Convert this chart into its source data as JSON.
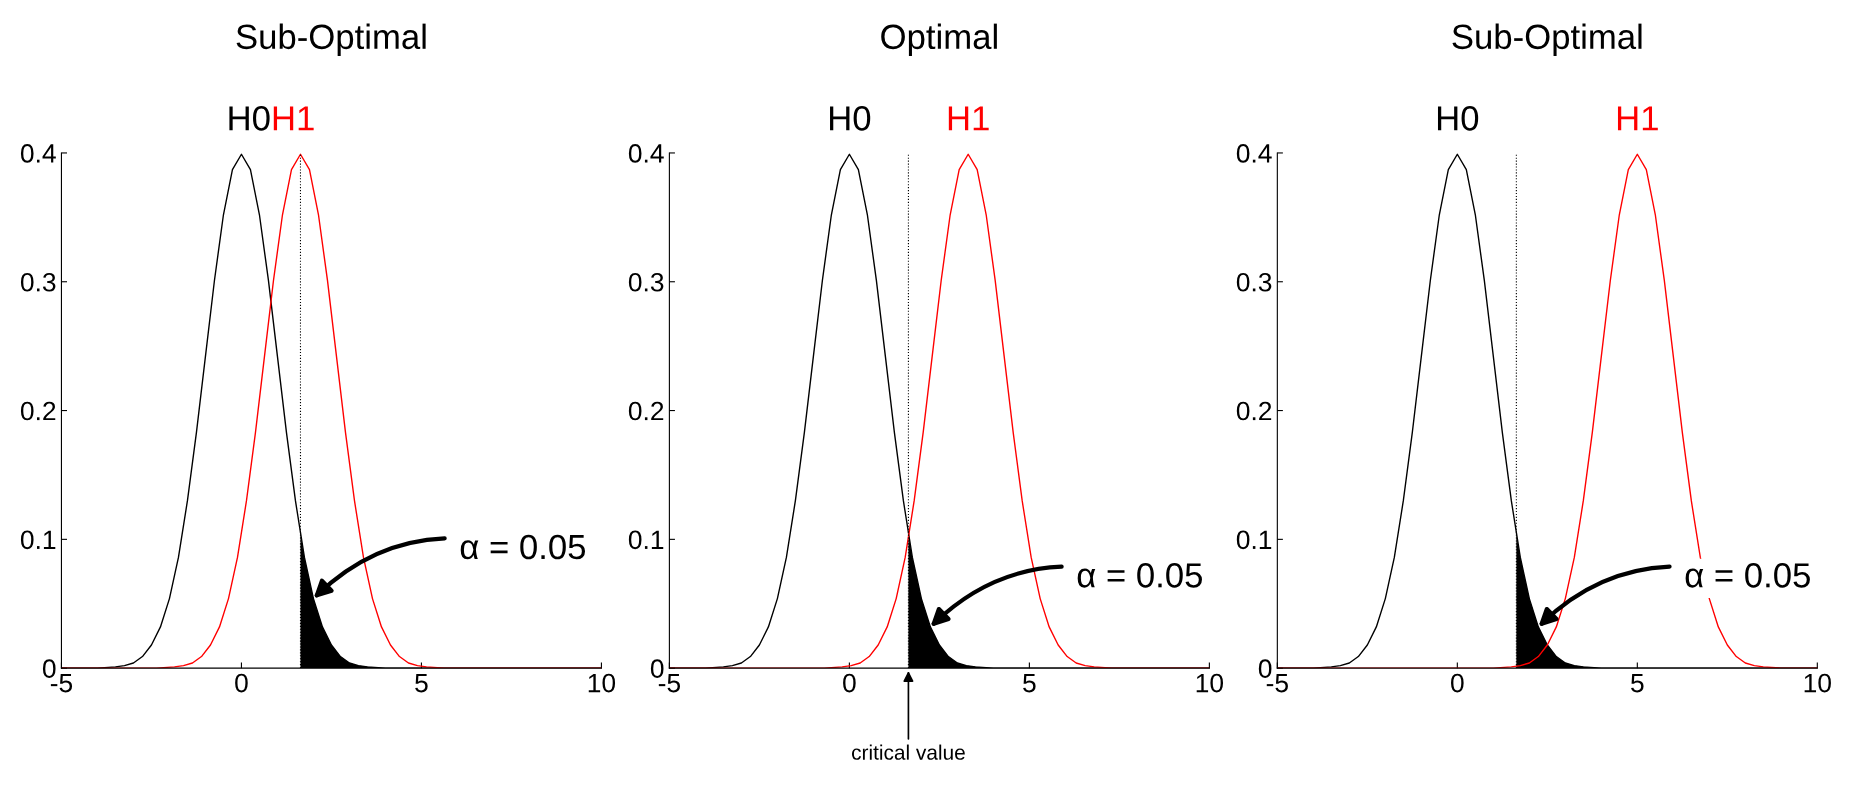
{
  "chart_data": [
    {
      "type": "line",
      "title": "Sub-Optimal",
      "xlim": [
        -5,
        10
      ],
      "ylim": [
        0,
        0.4
      ],
      "xticks": [
        -5,
        0,
        5,
        10
      ],
      "yticks": [
        0,
        0.1,
        0.2,
        0.3,
        0.4
      ],
      "grid": false,
      "legend": false,
      "marker": "none",
      "line_style": "solid",
      "series": [
        {
          "name": "H0",
          "color": "#000000",
          "x": [
            -5,
            -4,
            -3.5,
            -3.25,
            -3,
            -2.75,
            -2.5,
            -2.25,
            -2,
            -1.75,
            -1.5,
            -1.25,
            -1,
            -0.75,
            -0.5,
            -0.25,
            0,
            0.25,
            0.5,
            0.75,
            1,
            1.25,
            1.5,
            1.75,
            2,
            2.25,
            2.5,
            2.75,
            3,
            3.25,
            3.5,
            4,
            10
          ],
          "values": [
            0,
            0,
            0.001,
            0.002,
            0.004,
            0.009,
            0.018,
            0.032,
            0.054,
            0.086,
            0.13,
            0.183,
            0.242,
            0.301,
            0.352,
            0.387,
            0.399,
            0.387,
            0.352,
            0.301,
            0.242,
            0.183,
            0.13,
            0.086,
            0.054,
            0.032,
            0.018,
            0.009,
            0.004,
            0.002,
            0.001,
            0,
            0
          ]
        },
        {
          "name": "H1",
          "color": "#ff0000",
          "x": [
            -5,
            -2.36,
            -1.86,
            -1.61,
            -1.36,
            -1.11,
            -0.86,
            -0.61,
            -0.36,
            -0.11,
            0.14,
            0.39,
            0.64,
            0.89,
            1.14,
            1.39,
            1.64,
            1.89,
            2.14,
            2.39,
            2.64,
            2.89,
            3.14,
            3.39,
            3.64,
            3.89,
            4.14,
            4.39,
            4.64,
            4.89,
            5.14,
            5.64,
            10
          ],
          "values": [
            0,
            0,
            0.001,
            0.002,
            0.004,
            0.009,
            0.018,
            0.032,
            0.054,
            0.086,
            0.13,
            0.183,
            0.242,
            0.301,
            0.352,
            0.387,
            0.399,
            0.387,
            0.352,
            0.301,
            0.242,
            0.183,
            0.13,
            0.086,
            0.054,
            0.032,
            0.018,
            0.009,
            0.004,
            0.002,
            0.001,
            0,
            0
          ]
        },
        {
          "type": "area",
          "color": "#000000",
          "x": [
            1.64,
            1.75,
            2,
            2.25,
            2.5,
            2.75,
            3,
            3.25,
            3.5,
            4,
            10
          ],
          "values": [
            0.104,
            0.086,
            0.054,
            0.032,
            0.018,
            0.009,
            0.004,
            0.002,
            0.001,
            0,
            0
          ]
        }
      ],
      "ref_lines": [
        {
          "axis": "x",
          "value": 1.64,
          "color": "#000000",
          "line_style": "dotted"
        }
      ],
      "annotations": [
        {
          "text": "α = 0.05",
          "x": 2,
          "y": 0.054
        }
      ]
    },
    {
      "type": "line",
      "title": "Optimal",
      "xlim": [
        -5,
        10
      ],
      "ylim": [
        0,
        0.4
      ],
      "xticks": [
        -5,
        0,
        5,
        10
      ],
      "yticks": [
        0,
        0.1,
        0.2,
        0.3,
        0.4
      ],
      "grid": false,
      "legend": false,
      "marker": "none",
      "line_style": "solid",
      "series": [
        {
          "name": "H0",
          "color": "#000000",
          "x": [
            -5,
            -4,
            -3.5,
            -3.25,
            -3,
            -2.75,
            -2.5,
            -2.25,
            -2,
            -1.75,
            -1.5,
            -1.25,
            -1,
            -0.75,
            -0.5,
            -0.25,
            0,
            0.25,
            0.5,
            0.75,
            1,
            1.25,
            1.5,
            1.75,
            2,
            2.25,
            2.5,
            2.75,
            3,
            3.25,
            3.5,
            4,
            10
          ],
          "values": [
            0,
            0,
            0.001,
            0.002,
            0.004,
            0.009,
            0.018,
            0.032,
            0.054,
            0.086,
            0.13,
            0.183,
            0.242,
            0.301,
            0.352,
            0.387,
            0.399,
            0.387,
            0.352,
            0.301,
            0.242,
            0.183,
            0.13,
            0.086,
            0.054,
            0.032,
            0.018,
            0.009,
            0.004,
            0.002,
            0.001,
            0,
            0
          ]
        },
        {
          "name": "H1",
          "color": "#ff0000",
          "x": [
            -5,
            -0.7,
            -0.2,
            0.05,
            0.3,
            0.55,
            0.8,
            1.05,
            1.3,
            1.55,
            1.8,
            2.05,
            2.3,
            2.55,
            2.8,
            3.05,
            3.3,
            3.55,
            3.8,
            4.05,
            4.3,
            4.55,
            4.8,
            5.05,
            5.3,
            5.55,
            5.8,
            6.05,
            6.3,
            6.55,
            6.8,
            7.3,
            10
          ],
          "values": [
            0,
            0,
            0.001,
            0.002,
            0.004,
            0.009,
            0.018,
            0.032,
            0.054,
            0.086,
            0.13,
            0.183,
            0.242,
            0.301,
            0.352,
            0.387,
            0.399,
            0.387,
            0.352,
            0.301,
            0.242,
            0.183,
            0.13,
            0.086,
            0.054,
            0.032,
            0.018,
            0.009,
            0.004,
            0.002,
            0.001,
            0,
            0
          ]
        },
        {
          "type": "area",
          "color": "#000000",
          "x": [
            1.64,
            1.75,
            2,
            2.25,
            2.5,
            2.75,
            3,
            3.25,
            3.5,
            4,
            10
          ],
          "values": [
            0.104,
            0.086,
            0.054,
            0.032,
            0.018,
            0.009,
            0.004,
            0.002,
            0.001,
            0,
            0
          ]
        }
      ],
      "ref_lines": [
        {
          "axis": "x",
          "value": 1.64,
          "color": "#000000",
          "line_style": "dotted"
        }
      ],
      "annotations": [
        {
          "text": "α = 0.05",
          "x": 2.25,
          "y": 0.032
        },
        {
          "text": "critical value",
          "x": 1.64,
          "y": 0
        }
      ]
    },
    {
      "type": "line",
      "title": "Sub-Optimal",
      "xlim": [
        -5,
        10
      ],
      "ylim": [
        0,
        0.4
      ],
      "xticks": [
        -5,
        0,
        5,
        10
      ],
      "yticks": [
        0,
        0.1,
        0.2,
        0.3,
        0.4
      ],
      "grid": false,
      "legend": false,
      "marker": "none",
      "line_style": "solid",
      "series": [
        {
          "name": "H0",
          "color": "#000000",
          "x": [
            -5,
            -4,
            -3.5,
            -3.25,
            -3,
            -2.75,
            -2.5,
            -2.25,
            -2,
            -1.75,
            -1.5,
            -1.25,
            -1,
            -0.75,
            -0.5,
            -0.25,
            0,
            0.25,
            0.5,
            0.75,
            1,
            1.25,
            1.5,
            1.75,
            2,
            2.25,
            2.5,
            2.75,
            3,
            3.25,
            3.5,
            4,
            10
          ],
          "values": [
            0,
            0,
            0.001,
            0.002,
            0.004,
            0.009,
            0.018,
            0.032,
            0.054,
            0.086,
            0.13,
            0.183,
            0.242,
            0.301,
            0.352,
            0.387,
            0.399,
            0.387,
            0.352,
            0.301,
            0.242,
            0.183,
            0.13,
            0.086,
            0.054,
            0.032,
            0.018,
            0.009,
            0.004,
            0.002,
            0.001,
            0,
            0
          ]
        },
        {
          "name": "H1",
          "color": "#ff0000",
          "x": [
            -5,
            1,
            1.5,
            1.75,
            2,
            2.25,
            2.5,
            2.75,
            3,
            3.25,
            3.5,
            3.75,
            4,
            4.25,
            4.5,
            4.75,
            5,
            5.25,
            5.5,
            5.75,
            6,
            6.25,
            6.5,
            6.75,
            7,
            7.25,
            7.5,
            7.75,
            8,
            8.25,
            8.5,
            9,
            10
          ],
          "values": [
            0,
            0,
            0.001,
            0.002,
            0.004,
            0.009,
            0.018,
            0.032,
            0.054,
            0.086,
            0.13,
            0.183,
            0.242,
            0.301,
            0.352,
            0.387,
            0.399,
            0.387,
            0.352,
            0.301,
            0.242,
            0.183,
            0.13,
            0.086,
            0.054,
            0.032,
            0.018,
            0.009,
            0.004,
            0.002,
            0.001,
            0,
            0
          ]
        },
        {
          "type": "area",
          "color": "#000000",
          "x": [
            1.64,
            1.75,
            2,
            2.25,
            2.5,
            2.75,
            3,
            3.25,
            3.5,
            4,
            10
          ],
          "values": [
            0.104,
            0.086,
            0.054,
            0.032,
            0.018,
            0.009,
            0.004,
            0.002,
            0.001,
            0,
            0
          ]
        }
      ],
      "ref_lines": [
        {
          "axis": "x",
          "value": 1.64,
          "color": "#000000",
          "line_style": "dotted"
        }
      ],
      "annotations": [
        {
          "text": "α = 0.05",
          "x": 2.25,
          "y": 0.032
        }
      ]
    }
  ]
}
